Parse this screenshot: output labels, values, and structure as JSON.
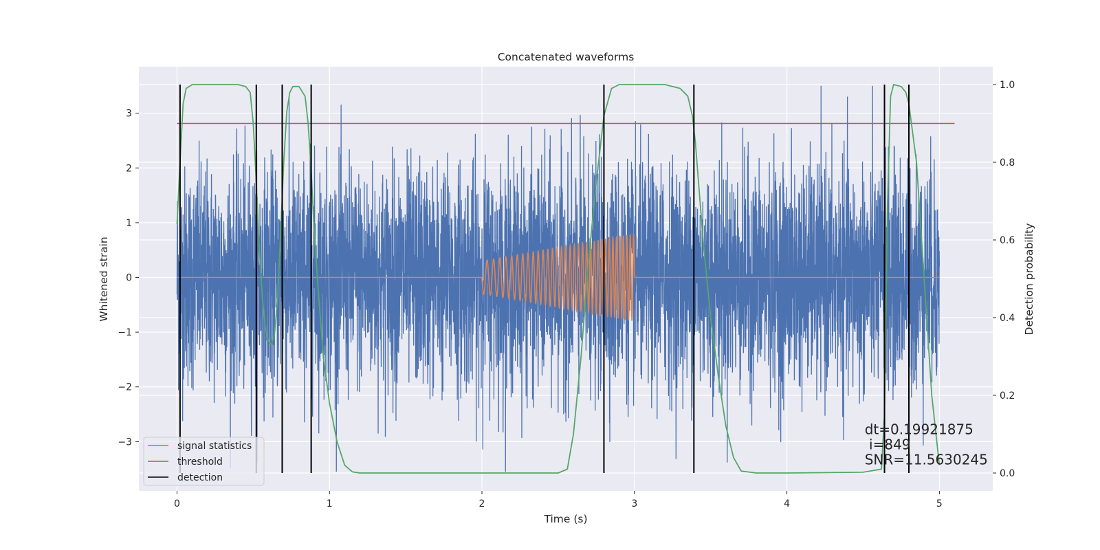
{
  "chart_data": {
    "type": "line",
    "title": "Concatenated waveforms",
    "xlabel": "Time (s)",
    "ylabel": "Whitened strain",
    "y2label": "Detection probability",
    "xlim": [
      -0.25,
      5.35
    ],
    "ylim": [
      -3.9,
      3.85
    ],
    "y2lim": [
      -0.046,
      1.046
    ],
    "xticks": [
      0,
      1,
      2,
      3,
      4,
      5
    ],
    "yticks": [
      -3,
      -2,
      -1,
      0,
      1,
      2,
      3
    ],
    "y2ticks": [
      0.0,
      0.2,
      0.4,
      0.6,
      0.8,
      1.0
    ],
    "xtick_labels": [
      "0",
      "1",
      "2",
      "3",
      "4",
      "5"
    ],
    "ytick_labels": [
      "−3",
      "−2",
      "−1",
      "0",
      "1",
      "2",
      "3"
    ],
    "y2tick_labels": [
      "0.0",
      "0.2",
      "0.4",
      "0.6",
      "0.8",
      "1.0"
    ],
    "grid": true,
    "legend_position": "lower-left",
    "colors": {
      "background": "#eaeaf2",
      "grid": "#ffffff",
      "strain": "#4c72b0",
      "template": "#dd8452",
      "signal_statistics": "#55a868",
      "threshold": "#c44e52",
      "detection": "#000000"
    },
    "legend": [
      {
        "label": "signal statistics",
        "color": "#55a868"
      },
      {
        "label": "threshold",
        "color": "#c44e52"
      },
      {
        "label": "detection",
        "color": "#000000"
      }
    ],
    "series": [
      {
        "kind": "noise",
        "axis": "left",
        "x_range": [
          0,
          5
        ],
        "typical_amplitude": 1.0,
        "min": -3.55,
        "max": 3.5
      },
      {
        "kind": "chirp",
        "axis": "left",
        "x_range": [
          2.0,
          3.0
        ],
        "amplitude_start": 0.3,
        "amplitude_end": 0.8,
        "flat_value": 0
      },
      {
        "name": "signal statistics",
        "axis": "right",
        "x": [
          0.0,
          0.02,
          0.04,
          0.06,
          0.1,
          0.2,
          0.3,
          0.4,
          0.45,
          0.48,
          0.5,
          0.52,
          0.54,
          0.56,
          0.58,
          0.6,
          0.62,
          0.64,
          0.66,
          0.68,
          0.7,
          0.72,
          0.74,
          0.76,
          0.8,
          0.84,
          0.86,
          0.88,
          0.9,
          0.93,
          0.96,
          1.0,
          1.05,
          1.1,
          1.15,
          1.2,
          1.5,
          2.0,
          2.5,
          2.56,
          2.6,
          2.65,
          2.7,
          2.75,
          2.8,
          2.85,
          2.9,
          3.0,
          3.2,
          3.3,
          3.35,
          3.38,
          3.4,
          3.45,
          3.5,
          3.55,
          3.6,
          3.65,
          3.7,
          3.8,
          4.0,
          4.5,
          4.62,
          4.64,
          4.66,
          4.68,
          4.7,
          4.75,
          4.78,
          4.8,
          4.85,
          4.9,
          4.95,
          5.0
        ],
        "y": [
          0.64,
          0.8,
          0.95,
          0.99,
          1.0,
          1.0,
          1.0,
          1.0,
          0.995,
          0.98,
          0.9,
          0.75,
          0.58,
          0.45,
          0.37,
          0.34,
          0.33,
          0.36,
          0.45,
          0.62,
          0.8,
          0.93,
          0.98,
          0.995,
          0.995,
          0.97,
          0.9,
          0.78,
          0.62,
          0.45,
          0.3,
          0.18,
          0.08,
          0.02,
          0.003,
          0.0,
          0.0,
          0.0,
          0.0,
          0.01,
          0.1,
          0.3,
          0.55,
          0.75,
          0.92,
          0.99,
          1.0,
          1.0,
          1.0,
          0.99,
          0.97,
          0.92,
          0.85,
          0.6,
          0.4,
          0.25,
          0.12,
          0.04,
          0.005,
          0.0,
          0.0,
          0.002,
          0.01,
          0.15,
          0.7,
          0.97,
          1.0,
          0.995,
          0.98,
          0.95,
          0.8,
          0.5,
          0.2,
          0.02
        ]
      },
      {
        "name": "threshold",
        "axis": "right",
        "x": [
          0.0,
          5.1
        ],
        "y": [
          0.9,
          0.9
        ]
      },
      {
        "name": "detection",
        "axis": "right",
        "kind": "vlines",
        "x": [
          0.02,
          0.52,
          0.69,
          0.88,
          2.8,
          3.39,
          4.64,
          4.8
        ],
        "ymin": 0.0,
        "ymax": 1.0
      }
    ],
    "annotations": [
      {
        "text": "dt=0.19921875",
        "x": 4.51,
        "y2": 0.1
      },
      {
        "text": " i=849",
        "x": 4.51,
        "y2": 0.061
      },
      {
        "text": "SNR=11.5630245",
        "x": 4.51,
        "y2": 0.022
      }
    ]
  }
}
